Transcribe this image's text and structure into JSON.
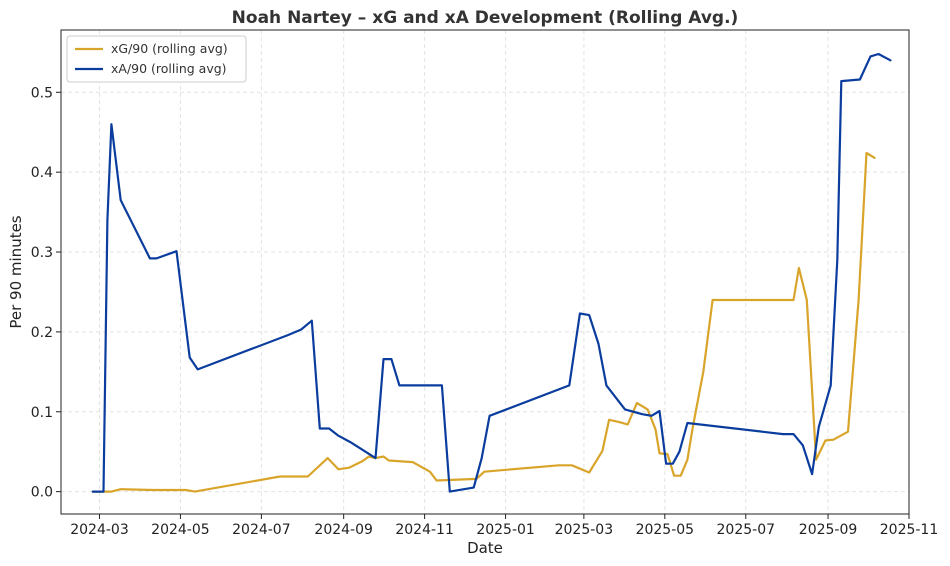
{
  "chart_data": {
    "type": "line",
    "title": "Noah Nartey – xG and xA Development (Rolling Avg.)",
    "xlabel": "Date",
    "ylabel": "Per 90 minutes",
    "xlim": [
      "2024-02-01",
      "2025-11-01"
    ],
    "ylim": [
      -0.028,
      0.578
    ],
    "grid": true,
    "legend_position": "upper-left",
    "x_ticks": [
      "2024-03",
      "2024-05",
      "2024-07",
      "2024-09",
      "2024-11",
      "2025-01",
      "2025-03",
      "2025-05",
      "2025-07",
      "2025-09",
      "2025-11"
    ],
    "y_ticks": [
      "0.0",
      "0.1",
      "0.2",
      "0.3",
      "0.4",
      "0.5"
    ],
    "y_tick_values": [
      0.0,
      0.1,
      0.2,
      0.3,
      0.4,
      0.5
    ],
    "series": [
      {
        "name": "xG/90 (rolling avg)",
        "color": "#d9a42a",
        "points": [
          [
            "2024-02-25",
            0.0
          ],
          [
            "2024-03-04",
            0.0
          ],
          [
            "2024-03-10",
            0.0
          ],
          [
            "2024-03-17",
            0.003
          ],
          [
            "2024-04-10",
            0.002
          ],
          [
            "2024-05-05",
            0.002
          ],
          [
            "2024-05-12",
            0.0
          ],
          [
            "2024-07-15",
            0.019
          ],
          [
            "2024-07-28",
            0.019
          ],
          [
            "2024-08-05",
            0.019
          ],
          [
            "2024-08-20",
            0.042
          ],
          [
            "2024-08-28",
            0.028
          ],
          [
            "2024-09-05",
            0.03
          ],
          [
            "2024-09-15",
            0.038
          ],
          [
            "2024-09-20",
            0.044
          ],
          [
            "2024-09-25",
            0.042
          ],
          [
            "2024-10-01",
            0.044
          ],
          [
            "2024-10-05",
            0.039
          ],
          [
            "2024-10-23",
            0.037
          ],
          [
            "2024-11-05",
            0.025
          ],
          [
            "2024-11-10",
            0.014
          ],
          [
            "2024-12-10",
            0.016
          ],
          [
            "2024-12-16",
            0.025
          ],
          [
            "2025-02-10",
            0.033
          ],
          [
            "2025-02-20",
            0.033
          ],
          [
            "2025-03-05",
            0.024
          ],
          [
            "2025-03-15",
            0.051
          ],
          [
            "2025-03-20",
            0.09
          ],
          [
            "2025-03-28",
            0.087
          ],
          [
            "2025-04-03",
            0.084
          ],
          [
            "2025-04-10",
            0.111
          ],
          [
            "2025-04-18",
            0.103
          ],
          [
            "2025-04-24",
            0.078
          ],
          [
            "2025-04-27",
            0.048
          ],
          [
            "2025-05-03",
            0.047
          ],
          [
            "2025-05-08",
            0.02
          ],
          [
            "2025-05-13",
            0.02
          ],
          [
            "2025-05-18",
            0.04
          ],
          [
            "2025-05-22",
            0.08
          ],
          [
            "2025-05-30",
            0.15
          ],
          [
            "2025-06-06",
            0.24
          ],
          [
            "2025-07-31",
            0.24
          ],
          [
            "2025-08-06",
            0.24
          ],
          [
            "2025-08-10",
            0.28
          ],
          [
            "2025-08-16",
            0.24
          ],
          [
            "2025-08-23",
            0.04
          ],
          [
            "2025-08-30",
            0.064
          ],
          [
            "2025-09-05",
            0.065
          ],
          [
            "2025-09-16",
            0.075
          ],
          [
            "2025-09-24",
            0.24
          ],
          [
            "2025-09-30",
            0.424
          ],
          [
            "2025-10-06",
            0.418
          ]
        ]
      },
      {
        "name": "xA/90 (rolling avg)",
        "color": "#0b3d9e",
        "points": [
          [
            "2024-02-25",
            0.0
          ],
          [
            "2024-03-04",
            0.0
          ],
          [
            "2024-03-07",
            0.34
          ],
          [
            "2024-03-10",
            0.46
          ],
          [
            "2024-03-17",
            0.365
          ],
          [
            "2024-04-08",
            0.292
          ],
          [
            "2024-04-13",
            0.292
          ],
          [
            "2024-04-28",
            0.301
          ],
          [
            "2024-05-08",
            0.168
          ],
          [
            "2024-05-14",
            0.153
          ],
          [
            "2024-07-21",
            0.196
          ],
          [
            "2024-07-31",
            0.203
          ],
          [
            "2024-08-08",
            0.214
          ],
          [
            "2024-08-14",
            0.079
          ],
          [
            "2024-08-21",
            0.079
          ],
          [
            "2024-08-28",
            0.07
          ],
          [
            "2024-09-06",
            0.062
          ],
          [
            "2024-09-25",
            0.042
          ],
          [
            "2024-10-01",
            0.166
          ],
          [
            "2024-10-07",
            0.166
          ],
          [
            "2024-10-13",
            0.133
          ],
          [
            "2024-11-05",
            0.133
          ],
          [
            "2024-11-14",
            0.133
          ],
          [
            "2024-11-20",
            0.0
          ],
          [
            "2024-12-08",
            0.005
          ],
          [
            "2024-12-14",
            0.042
          ],
          [
            "2024-12-20",
            0.095
          ],
          [
            "2025-02-18",
            0.133
          ],
          [
            "2025-02-26",
            0.223
          ],
          [
            "2025-03-05",
            0.221
          ],
          [
            "2025-03-12",
            0.185
          ],
          [
            "2025-03-18",
            0.133
          ],
          [
            "2025-04-01",
            0.103
          ],
          [
            "2025-04-14",
            0.097
          ],
          [
            "2025-04-21",
            0.095
          ],
          [
            "2025-04-27",
            0.101
          ],
          [
            "2025-05-02",
            0.035
          ],
          [
            "2025-05-07",
            0.035
          ],
          [
            "2025-05-12",
            0.05
          ],
          [
            "2025-05-18",
            0.086
          ],
          [
            "2025-07-29",
            0.072
          ],
          [
            "2025-08-06",
            0.072
          ],
          [
            "2025-08-13",
            0.058
          ],
          [
            "2025-08-20",
            0.022
          ],
          [
            "2025-08-25",
            0.081
          ],
          [
            "2025-09-03",
            0.133
          ],
          [
            "2025-09-08",
            0.29
          ],
          [
            "2025-09-11",
            0.514
          ],
          [
            "2025-09-25",
            0.516
          ],
          [
            "2025-10-03",
            0.545
          ],
          [
            "2025-10-09",
            0.548
          ],
          [
            "2025-10-18",
            0.54
          ]
        ]
      }
    ]
  }
}
